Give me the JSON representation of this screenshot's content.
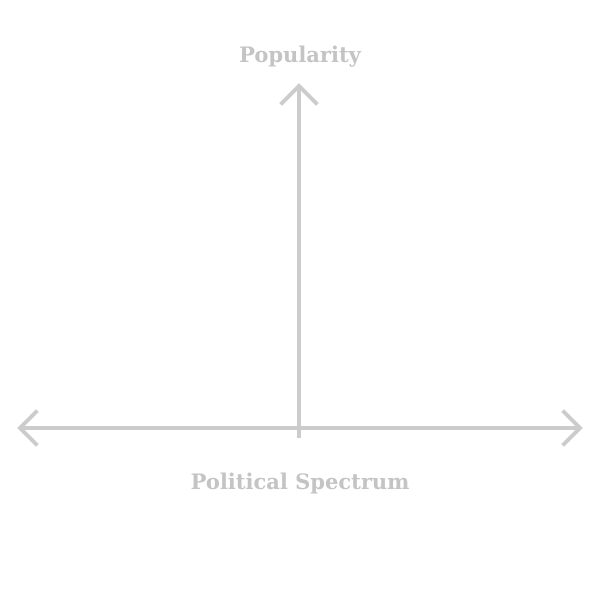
{
  "diagram": {
    "y_axis_label": "Popularity",
    "x_axis_label": "Political Spectrum"
  },
  "colors": {
    "axis": "#cccccc",
    "label": "#c4c4c4",
    "background": "#ffffff"
  }
}
